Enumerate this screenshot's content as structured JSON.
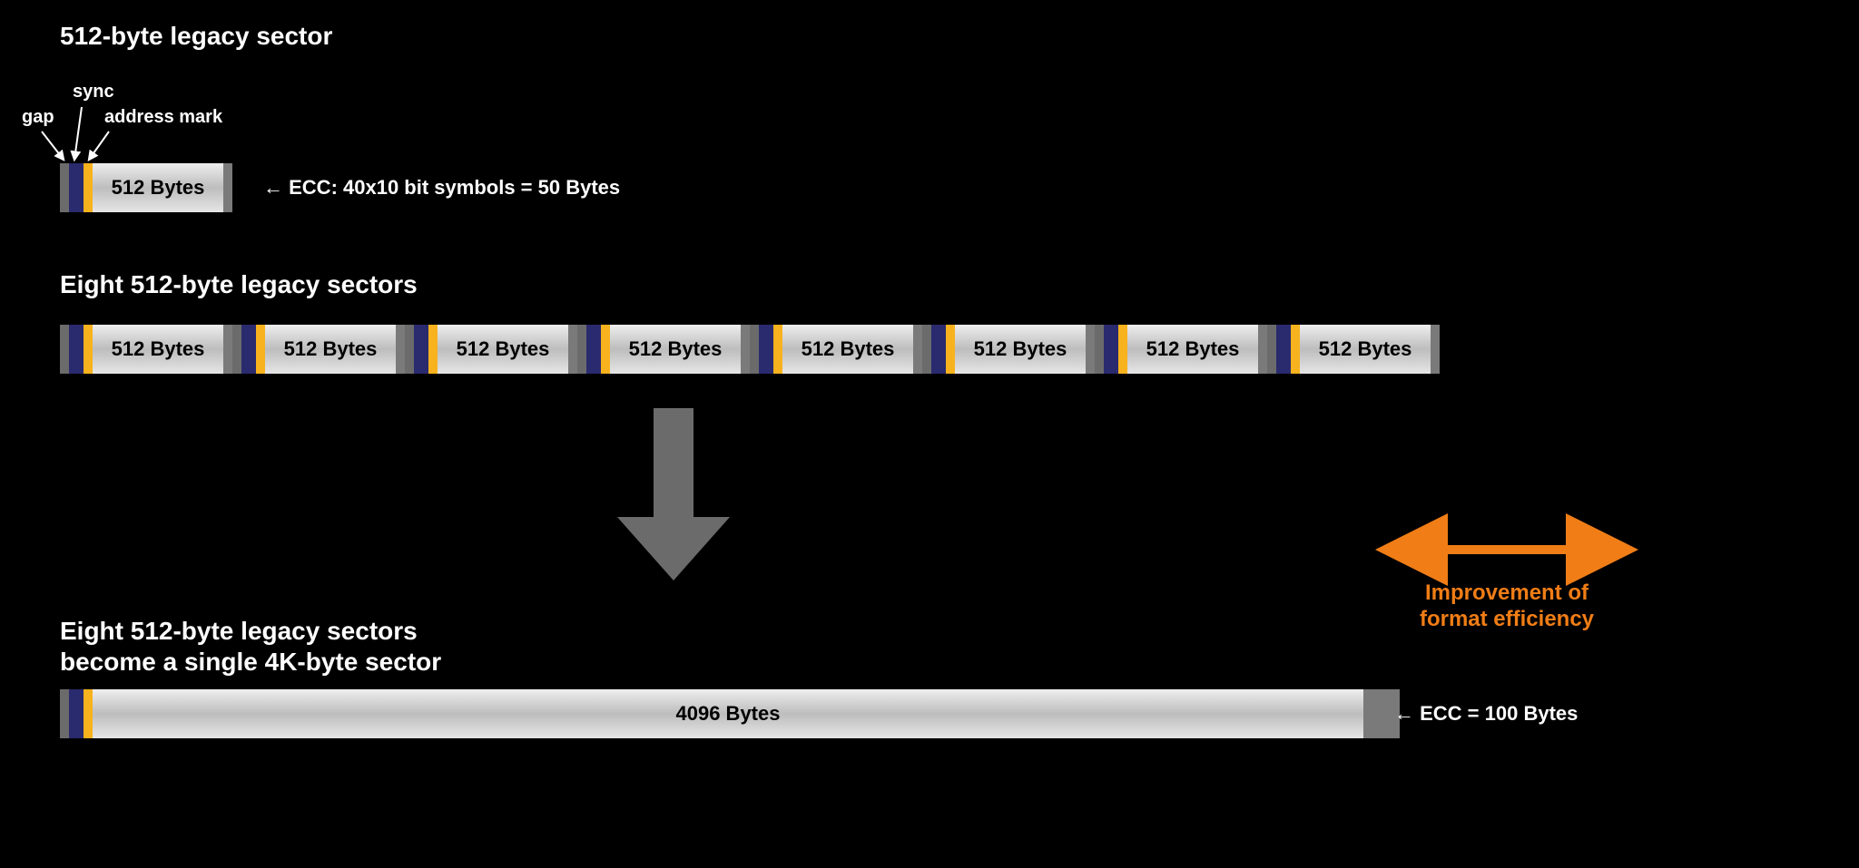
{
  "colors": {
    "bg": "#000000",
    "text": "#ffffff",
    "gap": "#6b6b6b",
    "sync": "#2a2a6e",
    "addr": "#f7b21e",
    "dataGradStart": "#eeeeee",
    "dataGradMid": "#bdbdbd",
    "dataGradEnd": "#e6e6e6",
    "ecc": "#7a7a7a",
    "arrow": "#6b6b6b",
    "orange": "#f07d16"
  },
  "titles": {
    "single": "512-byte legacy sector",
    "eight": "Eight 512-byte legacy sectors",
    "become1": "Eight 512-byte legacy sectors",
    "become2": "become a single 4K-byte sector"
  },
  "headerLabels": {
    "gap": "gap",
    "sync": "sync",
    "addr": "address mark"
  },
  "sideLabels": {
    "ecc512": "ECC: 40x10 bit symbols = 50 Bytes",
    "ecc4096": "ECC = 100 Bytes"
  },
  "sectorText512": "512 Bytes",
  "sectorText4096": "4096 Bytes",
  "improvement": {
    "line1": "Improvement of",
    "line2": "format efficiency"
  },
  "dims": {
    "segGapW": 10,
    "segSyncW": 16,
    "segAddrW": 10,
    "segData512W": 144,
    "segEccW": 10,
    "sectorH": 54
  }
}
